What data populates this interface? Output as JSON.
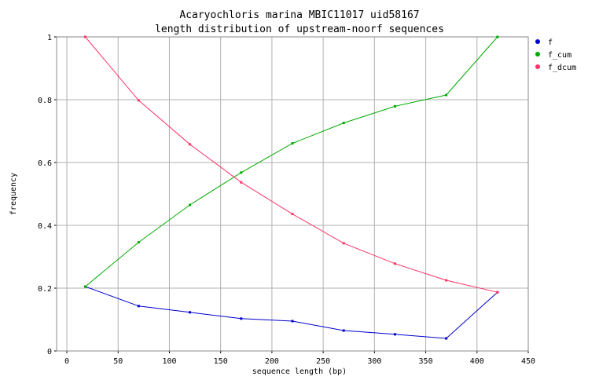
{
  "chart_data": {
    "type": "line",
    "title": "Acaryochloris marina MBIC11017 uid58167",
    "subtitle": "length distribution of upstream-noorf sequences",
    "xlabel": "sequence length (bp)",
    "ylabel": "frequency",
    "xlim": [
      -10,
      450
    ],
    "ylim": [
      0,
      1
    ],
    "xticks": [
      0,
      50,
      100,
      150,
      200,
      250,
      300,
      350,
      400,
      450
    ],
    "yticks": [
      0,
      0.2,
      0.4,
      0.6,
      0.8,
      1
    ],
    "grid": true,
    "legend_position": "top-right",
    "x": [
      18,
      70,
      120,
      170,
      220,
      270,
      320,
      370,
      420
    ],
    "series": [
      {
        "name": "f",
        "color": "#0000cc",
        "values": [
          0.205,
          0.143,
          0.123,
          0.103,
          0.095,
          0.065,
          0.053,
          0.04,
          0.187
        ]
      },
      {
        "name": "f_cum",
        "color": "#00aa00",
        "values": [
          0.205,
          0.346,
          0.465,
          0.568,
          0.661,
          0.726,
          0.779,
          0.815,
          1.0
        ]
      },
      {
        "name": "f_dcum",
        "color": "#ff3366",
        "values": [
          1.0,
          0.798,
          0.658,
          0.537,
          0.436,
          0.343,
          0.278,
          0.225,
          0.187
        ]
      }
    ]
  }
}
